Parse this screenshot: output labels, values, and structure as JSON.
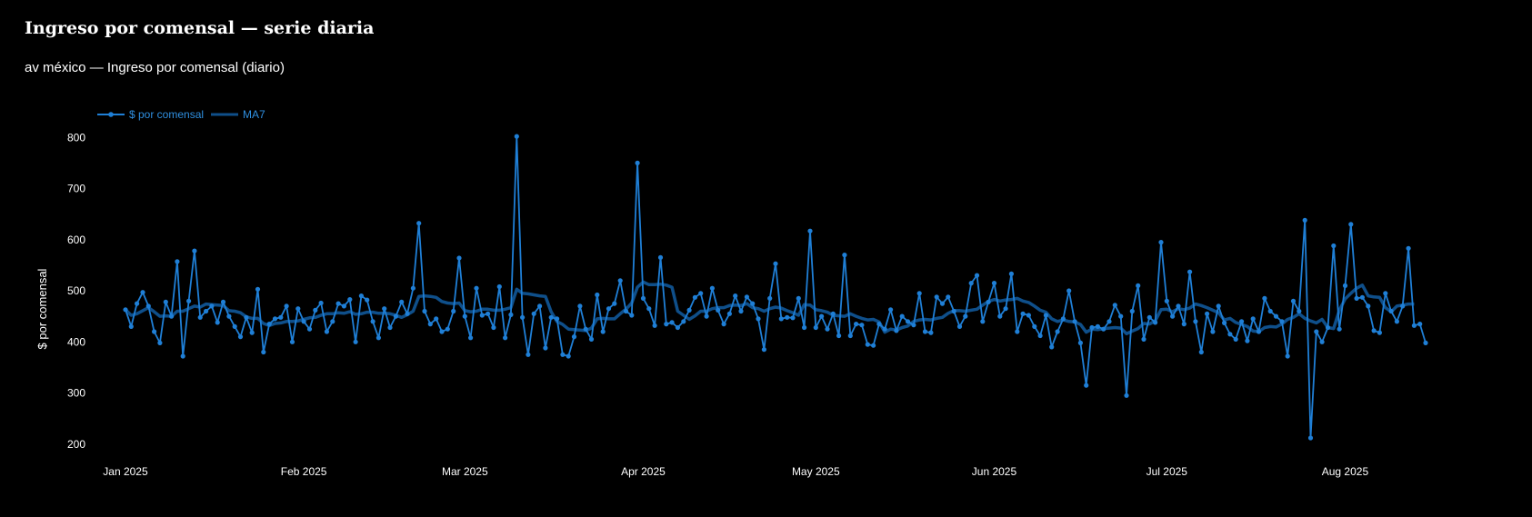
{
  "page": {
    "title": "Ingreso por comensal — serie diaria"
  },
  "chart_data": {
    "type": "line",
    "subtitle": "av méxico — Ingreso por comensal (diario)",
    "ylabel": "$ por comensal",
    "xlabel": "",
    "ylim": [
      180,
      820
    ],
    "yticks": [
      200,
      300,
      400,
      500,
      600,
      700,
      800
    ],
    "xlim": [
      "2024-12-26",
      "2025-08-24"
    ],
    "xticks": [
      {
        "date": "2025-01-01",
        "label": "Jan 2025"
      },
      {
        "date": "2025-02-01",
        "label": "Feb 2025"
      },
      {
        "date": "2025-03-01",
        "label": "Mar 2025"
      },
      {
        "date": "2025-04-01",
        "label": "Apr 2025"
      },
      {
        "date": "2025-05-01",
        "label": "May 2025"
      },
      {
        "date": "2025-06-01",
        "label": "Jun 2025"
      },
      {
        "date": "2025-07-01",
        "label": "Jul 2025"
      },
      {
        "date": "2025-08-01",
        "label": "Aug 2025"
      }
    ],
    "x_start": "2025-01-01",
    "grid": false,
    "legend_position": "top-left",
    "series": [
      {
        "name": "$ por comensal",
        "color": "#1f7fd6",
        "values": [
          463,
          430,
          475,
          497,
          470,
          420,
          398,
          478,
          450,
          557,
          372,
          480,
          578,
          448,
          460,
          470,
          438,
          478,
          450,
          430,
          410,
          448,
          418,
          503,
          380,
          435,
          445,
          448,
          470,
          400,
          465,
          440,
          425,
          462,
          476,
          420,
          440,
          475,
          470,
          483,
          400,
          490,
          482,
          440,
          408,
          465,
          428,
          450,
          478,
          455,
          505,
          632,
          460,
          435,
          445,
          420,
          425,
          460,
          564,
          450,
          408,
          505,
          452,
          455,
          428,
          508,
          408,
          453,
          802,
          448,
          375,
          455,
          470,
          388,
          448,
          445,
          375,
          372,
          410,
          470,
          425,
          405,
          492,
          420,
          465,
          475,
          520,
          460,
          452,
          750,
          485,
          465,
          432,
          565,
          435,
          438,
          428,
          440,
          462,
          487,
          495,
          450,
          505,
          462,
          435,
          455,
          490,
          460,
          488,
          475,
          445,
          385,
          485,
          553,
          445,
          448,
          447,
          485,
          428,
          617,
          428,
          450,
          425,
          455,
          412,
          570,
          412,
          435,
          433,
          395,
          393,
          435,
          425,
          463,
          422,
          450,
          440,
          433,
          495,
          420,
          418,
          488,
          475,
          488,
          460,
          430,
          450,
          515,
          530,
          440,
          478,
          515,
          450,
          465,
          533,
          420,
          455,
          452,
          430,
          412,
          452,
          390,
          420,
          445,
          500,
          440,
          398,
          315,
          428,
          430,
          425,
          440,
          472,
          450,
          295,
          460,
          510,
          405,
          448,
          438,
          595,
          480,
          450,
          470,
          435,
          537,
          440,
          380,
          455,
          420,
          470,
          437,
          415,
          405,
          440,
          402,
          445,
          420,
          485,
          460,
          450,
          440,
          372,
          480,
          460,
          638,
          212,
          420,
          400,
          428,
          588,
          425,
          510,
          630,
          485,
          487,
          470,
          422,
          418,
          495,
          460,
          440,
          470,
          583,
          432,
          435,
          398
        ]
      },
      {
        "name": "MA7",
        "color": "#0f4f8a",
        "values": [
          463,
          452,
          455,
          461,
          467,
          459,
          450,
          451,
          450,
          460,
          460,
          465,
          470,
          468,
          474,
          473,
          472,
          471,
          461,
          460,
          457,
          449,
          446,
          446,
          436,
          432,
          436,
          437,
          440,
          440,
          441,
          444,
          447,
          448,
          452,
          455,
          455,
          457,
          456,
          459,
          454,
          455,
          458,
          458,
          456,
          456,
          455,
          452,
          448,
          453,
          460,
          489,
          490,
          489,
          487,
          479,
          476,
          475,
          476,
          461,
          459,
          460,
          464,
          464,
          462,
          462,
          464,
          467,
          503,
          495,
          494,
          492,
          490,
          489,
          459,
          440,
          434,
          425,
          424,
          423,
          422,
          427,
          445,
          446,
          445,
          445,
          455,
          464,
          476,
          507,
          517,
          512,
          512,
          513,
          511,
          507,
          460,
          452,
          444,
          451,
          460,
          460,
          465,
          467,
          467,
          471,
          472,
          471,
          475,
          467,
          465,
          460,
          465,
          468,
          466,
          461,
          457,
          452,
          473,
          472,
          463,
          461,
          458,
          452,
          451,
          450,
          455,
          450,
          446,
          443,
          444,
          439,
          419,
          425,
          423,
          428,
          431,
          440,
          443,
          444,
          443,
          446,
          448,
          456,
          461,
          461,
          460,
          462,
          464,
          472,
          479,
          483,
          480,
          482,
          483,
          485,
          480,
          477,
          470,
          462,
          458,
          445,
          440,
          443,
          440,
          439,
          434,
          419,
          425,
          424,
          426,
          427,
          428,
          427,
          416,
          421,
          426,
          436,
          435,
          441,
          463,
          464,
          459,
          465,
          463,
          466,
          474,
          471,
          467,
          462,
          457,
          443,
          446,
          438,
          434,
          430,
          421,
          420,
          428,
          430,
          429,
          435,
          444,
          448,
          455,
          446,
          441,
          437,
          444,
          428,
          426,
          462,
          484,
          495,
          505,
          511,
          490,
          488,
          487,
          467,
          459,
          470,
          472,
          474,
          474
        ]
      }
    ]
  }
}
